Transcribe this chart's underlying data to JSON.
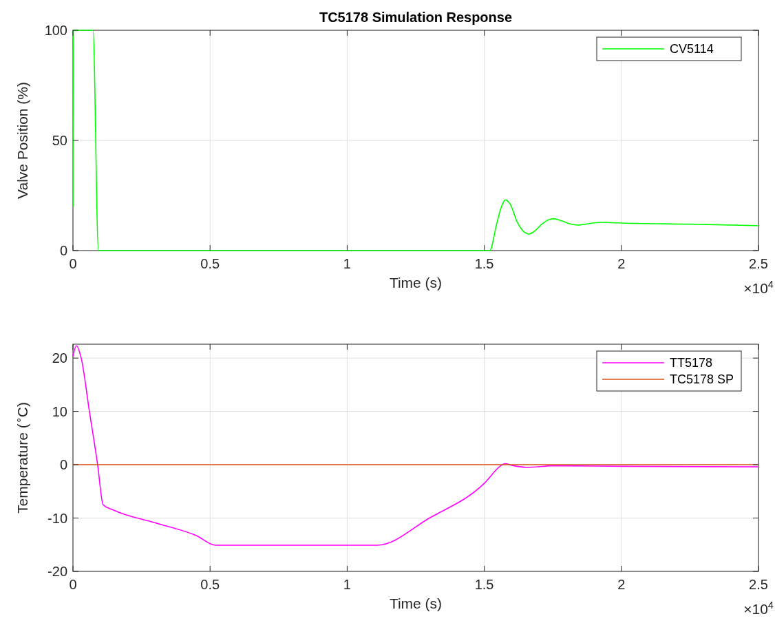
{
  "chart_data": [
    {
      "type": "line",
      "title": "TC5178 Simulation Response",
      "xlabel": "Time (s)",
      "ylabel": "Valve Position (%)",
      "annotations": [
        "×10$^{4}$"
      ],
      "xlim": [
        0,
        2.5
      ],
      "ylim": [
        0,
        100
      ],
      "xticks": [
        0,
        0.5,
        1,
        1.5,
        2,
        2.5
      ],
      "yticks": [
        0,
        50,
        100
      ],
      "grid": true,
      "legend": "top right",
      "line_style": "solid",
      "series": [
        {
          "name": "CV5114",
          "color": "#00ff00",
          "x": [
            0,
            0.001,
            0.073,
            0.093,
            1.52,
            1.545,
            1.56,
            1.577,
            1.595,
            1.62,
            1.645,
            1.662,
            1.68,
            1.71,
            1.735,
            1.755,
            1.78,
            1.81,
            1.844,
            1.87,
            1.9,
            1.927,
            1.96,
            2.0,
            2.25,
            2.5
          ],
          "values": [
            20,
            100,
            100,
            0,
            0,
            12,
            19,
            23,
            21,
            13,
            8.5,
            7.5,
            8.5,
            12,
            14,
            14.4,
            13.6,
            12.2,
            11.6,
            12,
            12.6,
            12.8,
            12.7,
            12.5,
            12,
            11.3
          ]
        }
      ]
    },
    {
      "type": "line",
      "xlabel": "Time (s)",
      "ylabel": "Temperature ($^{∘}$C)",
      "annotations": [
        "×10$^{4}$"
      ],
      "xlim": [
        0,
        2.5
      ],
      "ylim": [
        -20,
        22.6
      ],
      "xticks": [
        0,
        0.5,
        1,
        1.5,
        2,
        2.5
      ],
      "yticks": [
        -20,
        -10,
        0,
        10,
        20
      ],
      "grid": true,
      "legend": "top right",
      "line_style": "solid",
      "series": [
        {
          "name": "TT5178",
          "color": "#ff00ff",
          "x": [
            0,
            0.0125,
            0.03,
            0.06,
            0.09,
            0.11,
            0.148,
            0.3,
            0.45,
            0.52,
            1.11,
            1.3,
            1.5,
            1.56,
            1.575,
            1.6,
            1.66,
            1.75,
            2.0,
            2.5
          ],
          "values": [
            20.3,
            22.3,
            20,
            10,
            0,
            -7.5,
            -8.5,
            -10.9,
            -13.3,
            -15.1,
            -15.1,
            -10,
            -3.5,
            -0.2,
            0.2,
            -0.1,
            -0.5,
            -0.2,
            -0.3,
            -0.4
          ]
        },
        {
          "name": "TC5178 SP",
          "color": "#d95319",
          "x": [
            0,
            2.5
          ],
          "values": [
            0,
            0
          ]
        }
      ]
    }
  ]
}
